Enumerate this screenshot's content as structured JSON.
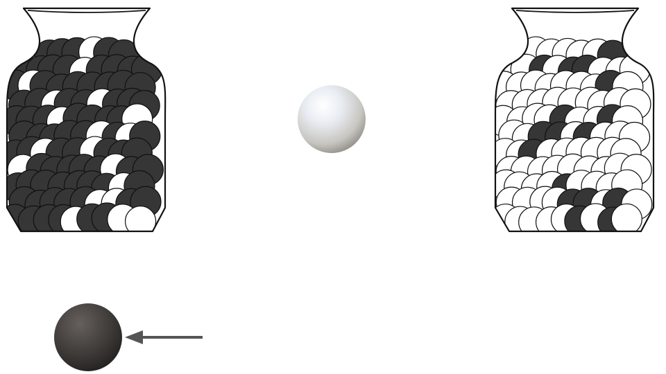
{
  "scene": {
    "background": "#ffffff",
    "colors": {
      "dark_marble": "#363636",
      "light_marble": "#ffffff",
      "outline": "#111111",
      "arrow": "#555555"
    },
    "left_vase": {
      "name": "mostly-dark-marbles-vase",
      "dark_count": 32,
      "light_count": 8
    },
    "right_vase": {
      "name": "mostly-light-marbles-vase",
      "dark_count": 7,
      "light_count": 33
    },
    "floating_marble": {
      "color": "light",
      "icon": "light-marble-3d"
    },
    "drawn_marble": {
      "color": "dark",
      "icon": "dark-marble-3d"
    },
    "arrow": {
      "icon": "left-arrow",
      "points_to": "drawn_marble"
    }
  }
}
